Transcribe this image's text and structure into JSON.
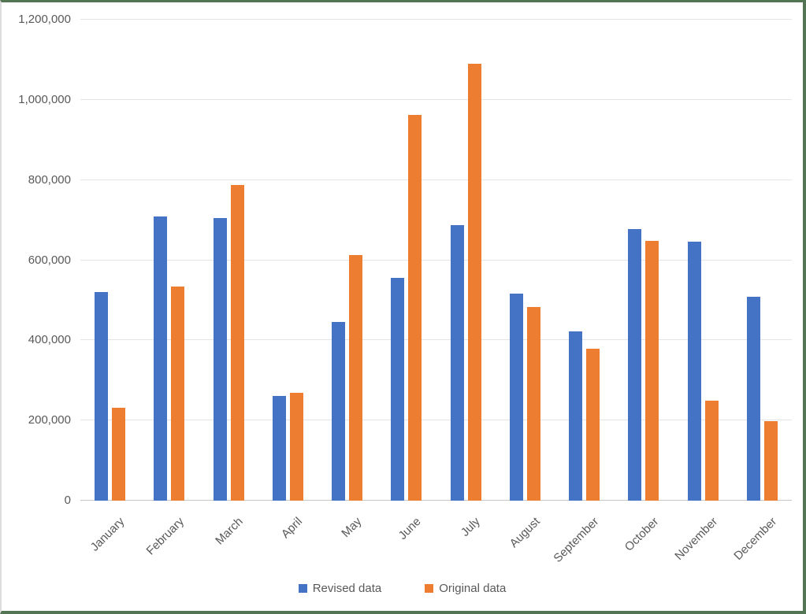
{
  "chart_data": {
    "type": "bar",
    "title": "",
    "xlabel": "",
    "ylabel": "",
    "categories": [
      "January",
      "February",
      "March",
      "April",
      "May",
      "June",
      "July",
      "August",
      "September",
      "October",
      "November",
      "December"
    ],
    "series": [
      {
        "name": "Revised data",
        "color": "#4472C4",
        "values": [
          520000,
          710000,
          705000,
          262000,
          446000,
          556000,
          688000,
          517000,
          423000,
          677000,
          646000,
          509000
        ]
      },
      {
        "name": "Original data",
        "color": "#ED7D31",
        "values": [
          232000,
          535000,
          787000,
          269000,
          613000,
          962000,
          1090000,
          483000,
          379000,
          648000,
          249000,
          199000
        ]
      }
    ],
    "ylim": [
      0,
      1200000
    ],
    "ytick_values": [
      0,
      200000,
      400000,
      600000,
      800000,
      1000000,
      1200000
    ],
    "ytick_labels": [
      "0",
      "200,000",
      "400,000",
      "600,000",
      "800,000",
      "1,000,000",
      "1,200,000"
    ],
    "grid": true,
    "legend_position": "bottom"
  },
  "legend": {
    "items": [
      {
        "label": "Revised data",
        "color": "#4472C4"
      },
      {
        "label": "Original data",
        "color": "#ED7D31"
      }
    ]
  },
  "colors": {
    "gridline": "#e4e4e4",
    "axis_line": "#c6c6c6",
    "tick_text": "#595959",
    "frame_border": "#537553",
    "background": "#ffffff"
  }
}
